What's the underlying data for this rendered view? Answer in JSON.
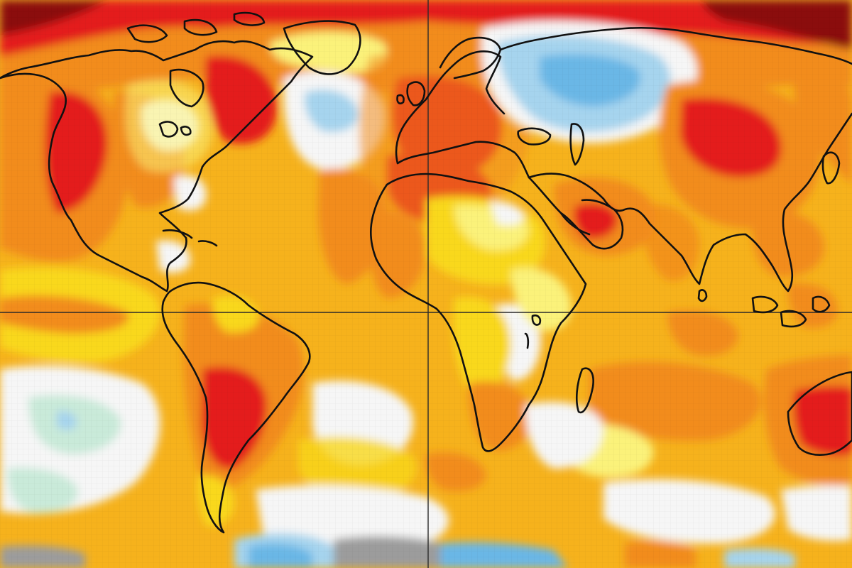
{
  "map": {
    "type": "global surface temperature anomaly map",
    "projection": "Robinson",
    "graticule": [
      "equator",
      "prime-meridian"
    ],
    "colors": {
      "dark_red": "#8b1010",
      "red": "#e41a1c",
      "orange_red": "#f05a14",
      "orange": "#f28c1b",
      "amber": "#f6b21c",
      "yellow": "#f9d81a",
      "light_yellow": "#fbf27a",
      "white": "#f6f6f6",
      "mint": "#c9ead9",
      "light_blue": "#a6d4ee",
      "blue": "#6bb7e6",
      "grey": "#9c9c9c",
      "coastline": "#111111"
    },
    "regions": [
      "north-america",
      "greenland",
      "south-america",
      "africa",
      "europe",
      "eurasia",
      "arabian-peninsula",
      "india",
      "australia",
      "madagascar",
      "british-isles",
      "japan",
      "indonesia",
      "caribbean"
    ]
  }
}
